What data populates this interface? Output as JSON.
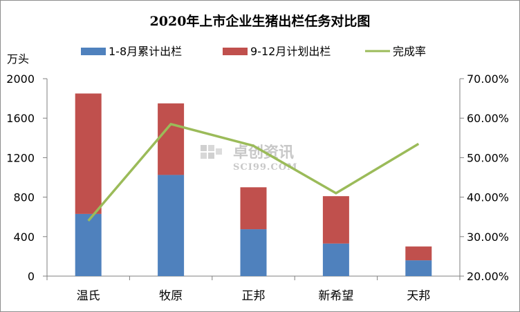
{
  "chart_data": {
    "type": "bar",
    "stacked": true,
    "title": "2020年上市企业生猪出栏任务对比图",
    "y_unit_label": "万头",
    "categories": [
      "温氏",
      "牧原",
      "正邦",
      "新希望",
      "天邦"
    ],
    "series": [
      {
        "name": "1-8月累计出栏",
        "type": "bar",
        "axis": "left",
        "color": "#4f81bd",
        "values": [
          630,
          1025,
          475,
          330,
          160
        ]
      },
      {
        "name": "9-12月计划出栏",
        "type": "bar",
        "axis": "left",
        "color": "#c0504d",
        "values": [
          1220,
          725,
          425,
          480,
          140
        ]
      },
      {
        "name": "完成率",
        "type": "line",
        "axis": "right",
        "color": "#9bbb59",
        "values": [
          0.34,
          0.585,
          0.53,
          0.41,
          0.535
        ]
      }
    ],
    "y_left": {
      "min": 0,
      "max": 2000,
      "ticks": [
        "0",
        "400",
        "800",
        "1200",
        "1600",
        "2000"
      ]
    },
    "y_right": {
      "min": 0.2,
      "max": 0.7,
      "ticks": [
        "20.00%",
        "30.00%",
        "40.00%",
        "50.00%",
        "60.00%",
        "70.00%"
      ]
    },
    "grid": false,
    "legend": "top"
  },
  "watermark": {
    "line1": "卓创资讯",
    "line2": "SCI99.COM"
  }
}
